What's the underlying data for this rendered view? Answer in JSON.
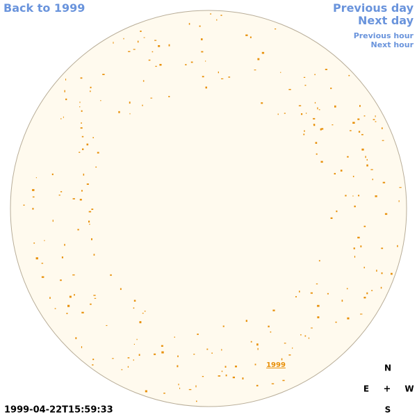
{
  "nav": {
    "back": "Back to 1999",
    "previous_day": "Previous day",
    "next_day": "Next day",
    "previous_hour": "Previous hour",
    "next_hour": "Next hour"
  },
  "timestamp": "1999-04-22T15:59:33",
  "year_label": "1999",
  "compass": {
    "north": "N",
    "east": "E",
    "center": "+",
    "west": "W",
    "south": "S"
  }
}
